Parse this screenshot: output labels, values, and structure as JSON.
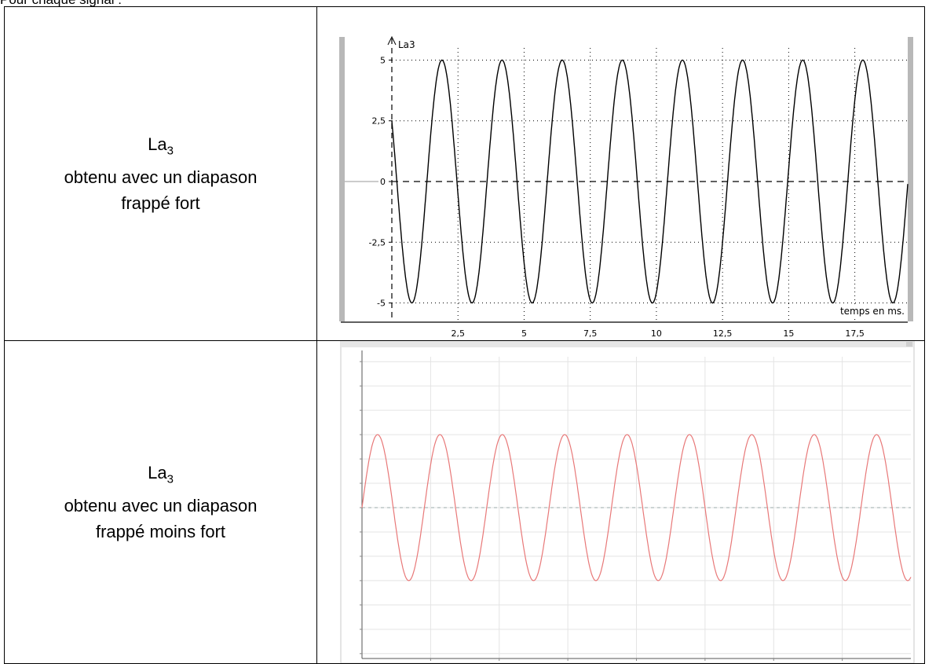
{
  "heading": "Pour chaque signal :",
  "rows": [
    {
      "note": "La",
      "note_sub": "3",
      "line1": "obtenu avec un diapason",
      "line2": "frappé fort"
    },
    {
      "note": "La",
      "note_sub": "3",
      "line1": "obtenu avec un diapason",
      "line2": "frappé moins fort"
    }
  ],
  "chart_data": [
    {
      "type": "line",
      "ylabel": "La3",
      "xlabel": "temps en ms.",
      "xlim": [
        0,
        19.5
      ],
      "ylim": [
        -5.5,
        5.5
      ],
      "x_ticks": [
        "2,5",
        "5",
        "7,5",
        "10",
        "12,5",
        "15",
        "17,5"
      ],
      "x_tick_values": [
        2.5,
        5,
        7.5,
        10,
        12.5,
        15,
        17.5
      ],
      "y_ticks": [
        "5",
        "2,5",
        "0",
        "-2,5",
        "-5"
      ],
      "y_tick_values": [
        5,
        2.5,
        0,
        -2.5,
        -5
      ],
      "grid": true,
      "series": [
        {
          "function": "sine",
          "amplitude": 5,
          "frequency_khz": 0.44,
          "phase_deg": 150,
          "color": "#000000"
        }
      ]
    },
    {
      "type": "line",
      "xlim": [
        0,
        20
      ],
      "ylim": [
        -6.2,
        6.2
      ],
      "grid": true,
      "series": [
        {
          "function": "sine",
          "amplitude": 3,
          "frequency_khz": 0.44,
          "phase_deg": 0,
          "color": "#e87878"
        }
      ]
    }
  ]
}
